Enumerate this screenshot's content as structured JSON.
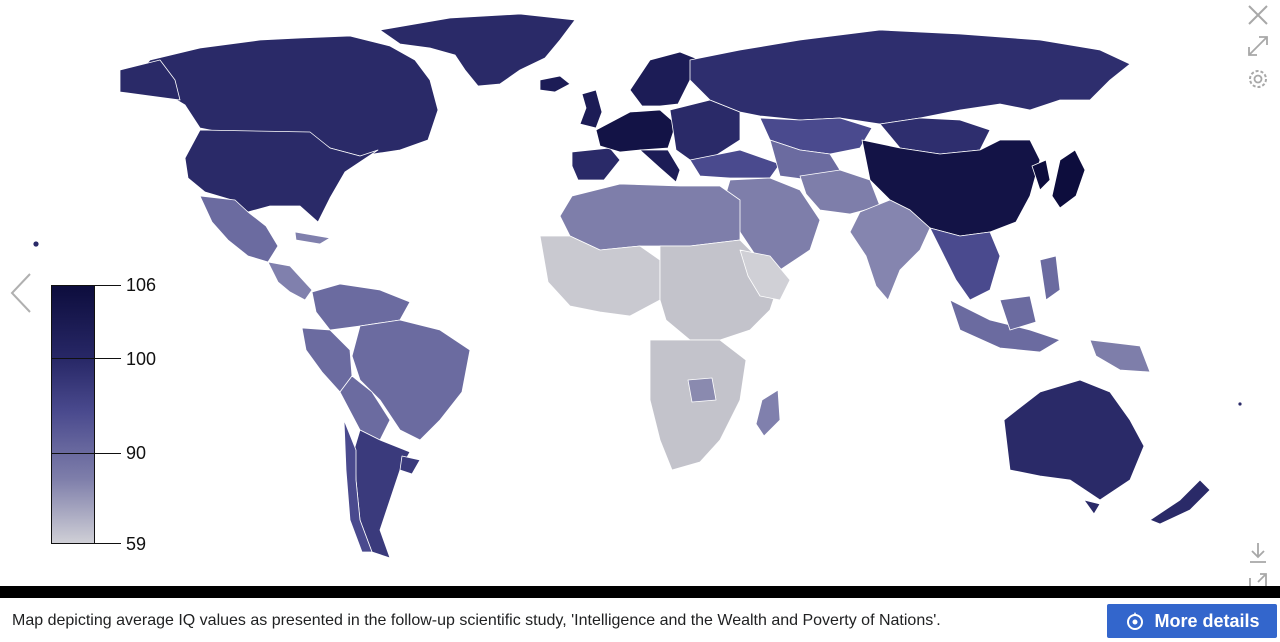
{
  "legend": {
    "tick_labels": [
      "106",
      "100",
      "90",
      "59"
    ],
    "max": 106,
    "min": 59
  },
  "controls": {
    "close_icon": "close-icon",
    "fullscreen_icon": "expand-icon",
    "settings_icon": "gear-icon",
    "download_icon": "download-icon",
    "share_icon": "share-icon",
    "prev_icon": "chevron-left-icon"
  },
  "colors": {
    "highest": "#0d0d3d",
    "high": "#272766",
    "mid": "#4a4a8e",
    "low": "#7e7eaa",
    "lowest": "#cfcfd6",
    "button": "#3366cc"
  },
  "caption": {
    "text": "Map depicting average IQ values as presented in the follow-up scientific study, 'Intelligence and the Wealth and Poverty of Nations'.",
    "button_label": "More details"
  }
}
